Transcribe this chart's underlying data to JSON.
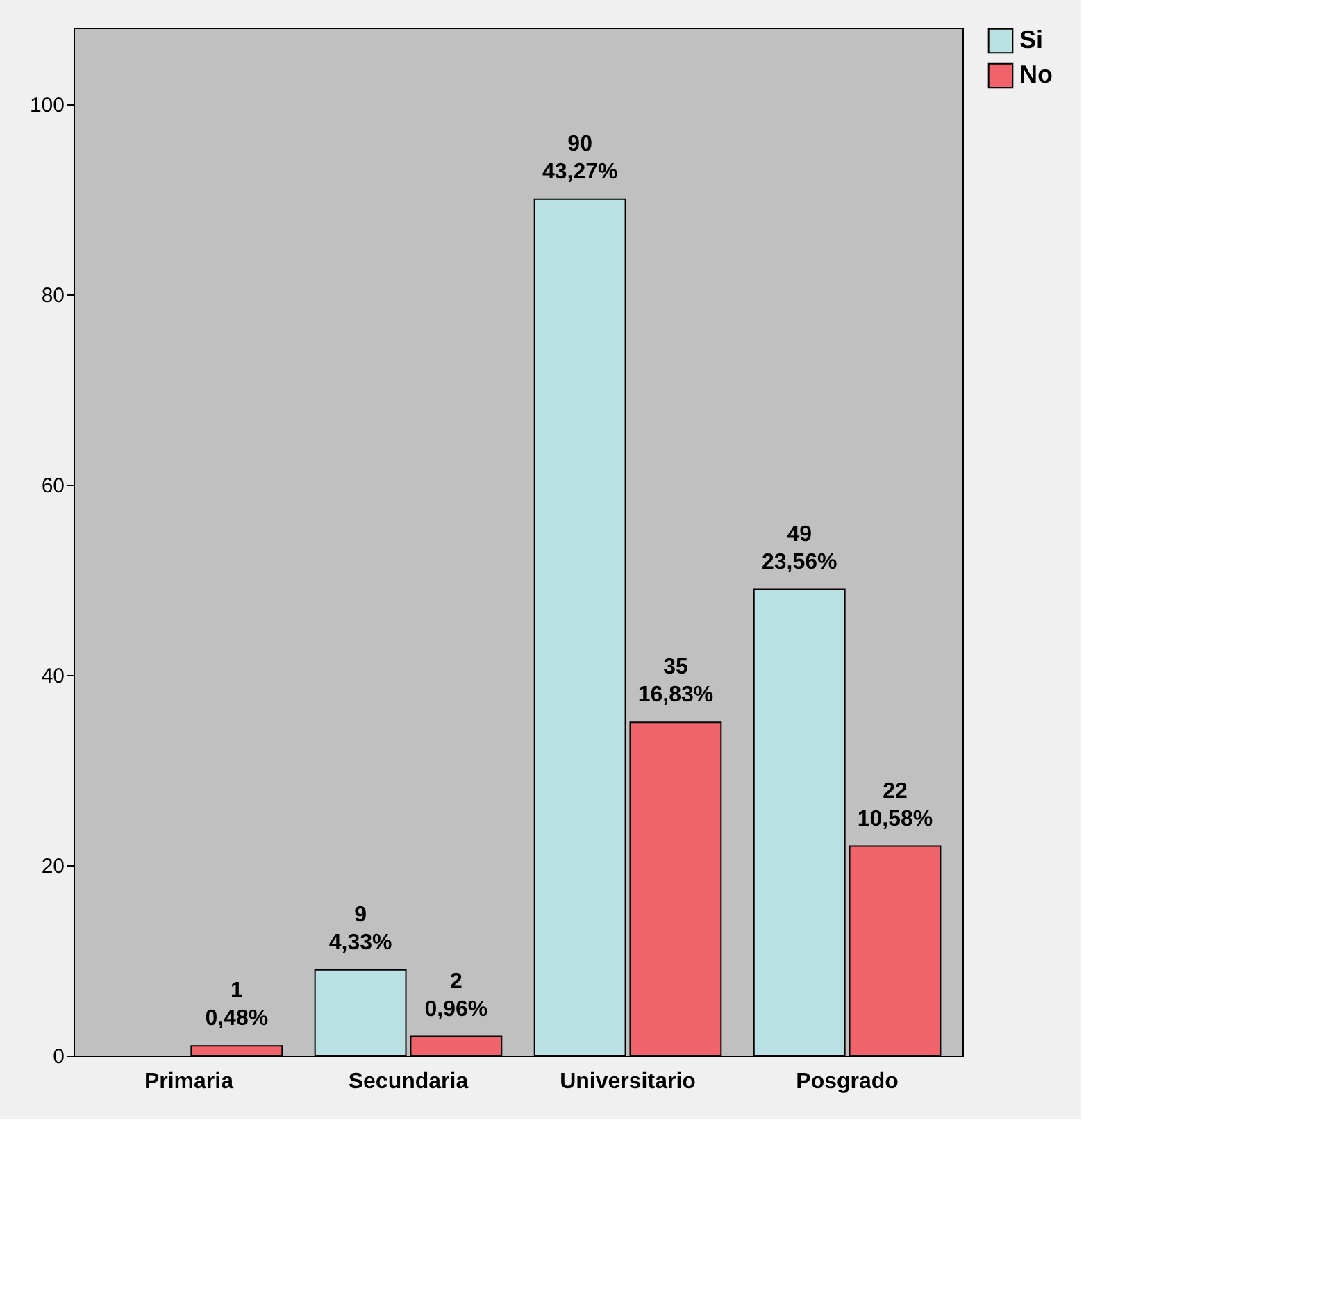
{
  "chart_data": {
    "type": "bar",
    "categories": [
      "Primaria",
      "Secundaria",
      "Universitario",
      "Posgrado"
    ],
    "series": [
      {
        "name": "Si",
        "color": "#b9e1e4",
        "values": [
          null,
          9,
          90,
          49
        ],
        "value_labels": [
          null,
          "9\n4,33%",
          "90\n43,27%",
          "49\n23,56%"
        ]
      },
      {
        "name": "No",
        "color": "#f0636a",
        "values": [
          1,
          2,
          35,
          22
        ],
        "value_labels": [
          "1\n0,48%",
          "2\n0,96%",
          "35\n16,83%",
          "22\n10,58%"
        ]
      }
    ],
    "ylim": [
      0,
      108
    ],
    "yticks": [
      0,
      20,
      40,
      60,
      80,
      100
    ],
    "grid": false,
    "legend": "top right"
  }
}
